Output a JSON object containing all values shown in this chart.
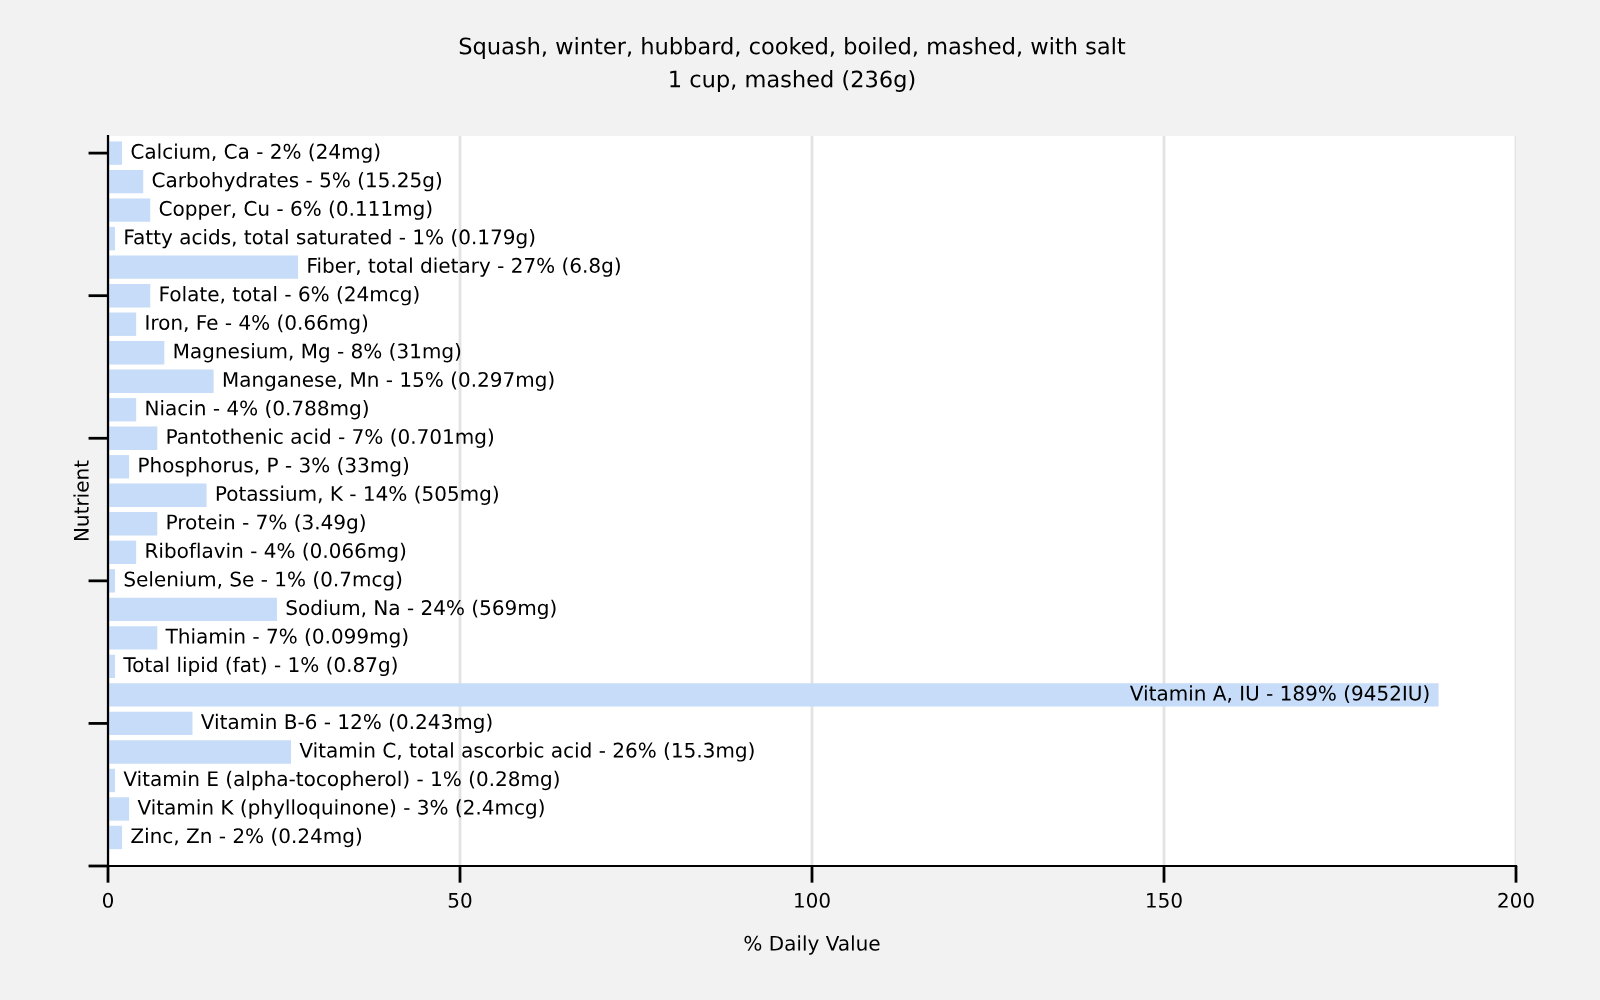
{
  "chart_data": {
    "type": "bar",
    "orientation": "horizontal",
    "title": "Squash, winter, hubbard, cooked, boiled, mashed, with salt",
    "subtitle": "1 cup, mashed (236g)",
    "xlabel": "% Daily Value",
    "ylabel": "Nutrient",
    "categories": [
      "Calcium, Ca - 2% (24mg)",
      "Carbohydrates - 5% (15.25g)",
      "Copper, Cu - 6% (0.111mg)",
      "Fatty acids, total saturated - 1% (0.179g)",
      "Fiber, total dietary - 27% (6.8g)",
      "Folate, total - 6% (24mcg)",
      "Iron, Fe - 4% (0.66mg)",
      "Magnesium, Mg - 8% (31mg)",
      "Manganese, Mn - 15% (0.297mg)",
      "Niacin - 4% (0.788mg)",
      "Pantothenic acid - 7% (0.701mg)",
      "Phosphorus, P - 3% (33mg)",
      "Potassium, K - 14% (505mg)",
      "Protein - 7% (3.49g)",
      "Riboflavin - 4% (0.066mg)",
      "Selenium, Se - 1% (0.7mcg)",
      "Sodium, Na - 24% (569mg)",
      "Thiamin - 7% (0.099mg)",
      "Total lipid (fat) - 1% (0.87g)",
      "Vitamin A, IU - 189% (9452IU)",
      "Vitamin B-6 - 12% (0.243mg)",
      "Vitamin C, total ascorbic acid - 26% (15.3mg)",
      "Vitamin E (alpha-tocopherol) - 1% (0.28mg)",
      "Vitamin K (phylloquinone) - 3% (2.4mcg)",
      "Zinc, Zn - 2% (0.24mg)"
    ],
    "values": [
      2,
      5,
      6,
      1,
      27,
      6,
      4,
      8,
      15,
      4,
      7,
      3,
      14,
      7,
      4,
      1,
      24,
      7,
      1,
      189,
      12,
      26,
      1,
      3,
      2
    ],
    "color": "#c6dcf8",
    "xlim": [
      0,
      200
    ],
    "xticks": [
      0,
      50,
      100,
      150,
      200
    ],
    "grid": "x"
  }
}
